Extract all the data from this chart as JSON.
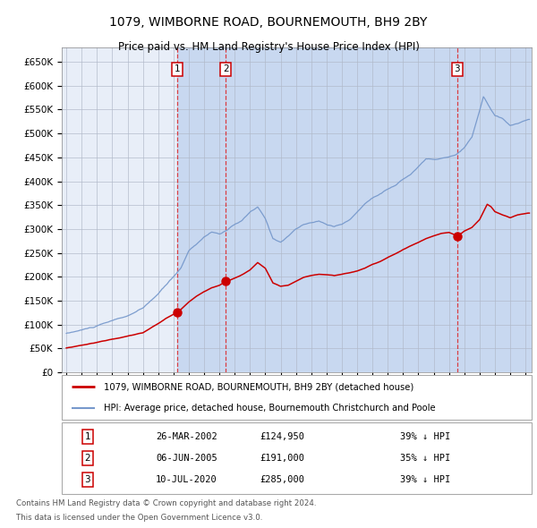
{
  "title": "1079, WIMBORNE ROAD, BOURNEMOUTH, BH9 2BY",
  "subtitle": "Price paid vs. HM Land Registry's House Price Index (HPI)",
  "sale_dates_float": [
    2002.229,
    2005.42,
    2020.53
  ],
  "sale_prices": [
    124950,
    191000,
    285000
  ],
  "sale_labels": [
    "1",
    "2",
    "3"
  ],
  "sale_info": [
    {
      "label": "1",
      "date": "26-MAR-2002",
      "price": "£124,950",
      "pct": "39% ↓ HPI"
    },
    {
      "label": "2",
      "date": "06-JUN-2005",
      "price": "£191,000",
      "pct": "35% ↓ HPI"
    },
    {
      "label": "3",
      "date": "10-JUL-2020",
      "price": "£285,000",
      "pct": "39% ↓ HPI"
    }
  ],
  "red_line_label": "1079, WIMBORNE ROAD, BOURNEMOUTH, BH9 2BY (detached house)",
  "blue_line_label": "HPI: Average price, detached house, Bournemouth Christchurch and Poole",
  "footnote1": "Contains HM Land Registry data © Crown copyright and database right 2024.",
  "footnote2": "This data is licensed under the Open Government Licence v3.0.",
  "ylim": [
    0,
    680000
  ],
  "yticks": [
    0,
    50000,
    100000,
    150000,
    200000,
    250000,
    300000,
    350000,
    400000,
    450000,
    500000,
    550000,
    600000,
    650000
  ],
  "xlim_start": 1994.7,
  "xlim_end": 2025.4,
  "background_color": "#ffffff",
  "plot_bg_color": "#e8eef8",
  "grid_color": "#b0b8c8",
  "red_color": "#cc0000",
  "blue_color": "#7799cc",
  "shade_color": "#c8d8f0",
  "dashed_color": "#dd2222",
  "hpi_keypoints": [
    [
      1995.0,
      85000
    ],
    [
      1996.0,
      92000
    ],
    [
      1997.0,
      100000
    ],
    [
      1998.0,
      110000
    ],
    [
      1999.0,
      120000
    ],
    [
      2000.0,
      135000
    ],
    [
      2001.0,
      165000
    ],
    [
      2002.0,
      200000
    ],
    [
      2002.5,
      220000
    ],
    [
      2003.0,
      255000
    ],
    [
      2003.5,
      270000
    ],
    [
      2004.0,
      285000
    ],
    [
      2004.5,
      295000
    ],
    [
      2005.0,
      292000
    ],
    [
      2005.5,
      298000
    ],
    [
      2006.0,
      310000
    ],
    [
      2006.5,
      318000
    ],
    [
      2007.0,
      335000
    ],
    [
      2007.5,
      345000
    ],
    [
      2008.0,
      320000
    ],
    [
      2008.5,
      278000
    ],
    [
      2009.0,
      272000
    ],
    [
      2009.5,
      285000
    ],
    [
      2010.0,
      300000
    ],
    [
      2010.5,
      308000
    ],
    [
      2011.0,
      312000
    ],
    [
      2011.5,
      315000
    ],
    [
      2012.0,
      308000
    ],
    [
      2012.5,
      305000
    ],
    [
      2013.0,
      310000
    ],
    [
      2013.5,
      318000
    ],
    [
      2014.0,
      335000
    ],
    [
      2014.5,
      352000
    ],
    [
      2015.0,
      365000
    ],
    [
      2015.5,
      375000
    ],
    [
      2016.0,
      385000
    ],
    [
      2016.5,
      392000
    ],
    [
      2017.0,
      405000
    ],
    [
      2017.5,
      415000
    ],
    [
      2018.0,
      432000
    ],
    [
      2018.5,
      448000
    ],
    [
      2019.0,
      445000
    ],
    [
      2019.5,
      448000
    ],
    [
      2020.0,
      450000
    ],
    [
      2020.5,
      455000
    ],
    [
      2021.0,
      468000
    ],
    [
      2021.5,
      490000
    ],
    [
      2022.0,
      545000
    ],
    [
      2022.25,
      575000
    ],
    [
      2022.5,
      562000
    ],
    [
      2022.75,
      548000
    ],
    [
      2023.0,
      535000
    ],
    [
      2023.5,
      528000
    ],
    [
      2024.0,
      512000
    ],
    [
      2024.5,
      518000
    ],
    [
      2025.2,
      525000
    ]
  ],
  "red_keypoints": [
    [
      1995.0,
      51000
    ],
    [
      1996.0,
      57000
    ],
    [
      1997.0,
      63000
    ],
    [
      1998.0,
      70000
    ],
    [
      1999.0,
      76000
    ],
    [
      2000.0,
      83000
    ],
    [
      2001.0,
      102000
    ],
    [
      2001.5,
      113000
    ],
    [
      2002.229,
      124950
    ],
    [
      2002.5,
      132000
    ],
    [
      2003.0,
      148000
    ],
    [
      2003.5,
      160000
    ],
    [
      2004.0,
      170000
    ],
    [
      2004.5,
      178000
    ],
    [
      2005.0,
      183000
    ],
    [
      2005.42,
      191000
    ],
    [
      2005.8,
      195000
    ],
    [
      2006.0,
      198000
    ],
    [
      2006.5,
      205000
    ],
    [
      2007.0,
      215000
    ],
    [
      2007.5,
      230000
    ],
    [
      2008.0,
      218000
    ],
    [
      2008.5,
      187000
    ],
    [
      2009.0,
      180000
    ],
    [
      2009.5,
      182000
    ],
    [
      2010.0,
      190000
    ],
    [
      2010.5,
      198000
    ],
    [
      2011.0,
      202000
    ],
    [
      2011.5,
      205000
    ],
    [
      2012.0,
      204000
    ],
    [
      2012.5,
      202000
    ],
    [
      2013.0,
      205000
    ],
    [
      2013.5,
      208000
    ],
    [
      2014.0,
      212000
    ],
    [
      2014.5,
      218000
    ],
    [
      2015.0,
      226000
    ],
    [
      2015.5,
      232000
    ],
    [
      2016.0,
      240000
    ],
    [
      2016.5,
      248000
    ],
    [
      2017.0,
      257000
    ],
    [
      2017.5,
      265000
    ],
    [
      2018.0,
      272000
    ],
    [
      2018.5,
      280000
    ],
    [
      2019.0,
      286000
    ],
    [
      2019.5,
      291000
    ],
    [
      2020.0,
      293000
    ],
    [
      2020.53,
      285000
    ],
    [
      2020.8,
      290000
    ],
    [
      2021.0,
      295000
    ],
    [
      2021.5,
      302000
    ],
    [
      2022.0,
      318000
    ],
    [
      2022.5,
      350000
    ],
    [
      2022.75,
      345000
    ],
    [
      2023.0,
      335000
    ],
    [
      2023.5,
      328000
    ],
    [
      2024.0,
      322000
    ],
    [
      2024.5,
      328000
    ],
    [
      2025.2,
      332000
    ]
  ]
}
